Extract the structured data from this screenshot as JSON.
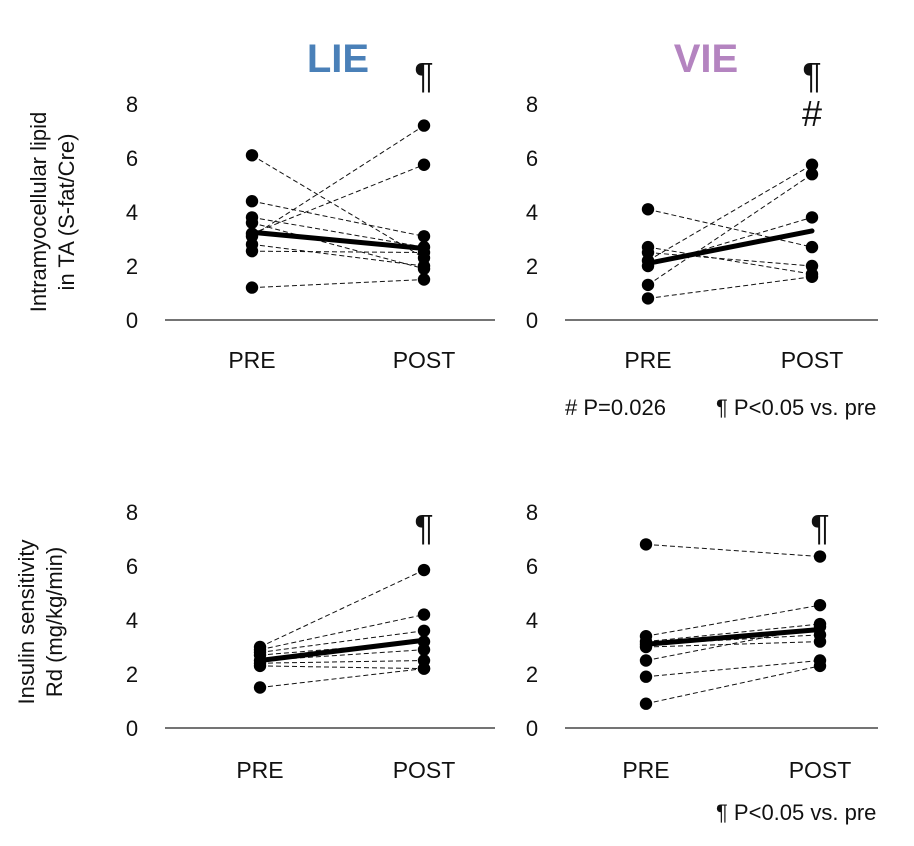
{
  "titles": {
    "lie": "LIE",
    "vie": "VIE"
  },
  "title_colors": {
    "lie": "#4a80b8",
    "vie": "#b484c0"
  },
  "ylabels": {
    "top": [
      "Intramyocellular lipid",
      "in TA (S-fat/Cre)"
    ],
    "bottom": [
      "Insulin sensitivity",
      "Rd (mg/kg/min)"
    ]
  },
  "footnotes": {
    "top_left": "# P=0.026",
    "top_right": "¶ P<0.05 vs. pre",
    "bottom_right": "¶ P<0.05 vs. pre"
  },
  "chart_data": [
    {
      "id": "imcl-lie",
      "type": "line",
      "categories": [
        "PRE",
        "POST"
      ],
      "yticks": [
        0,
        2,
        4,
        6,
        8
      ],
      "ylim": [
        0,
        8
      ],
      "marks": [
        "¶"
      ],
      "individual": [
        [
          6.1,
          2.3
        ],
        [
          4.4,
          3.1
        ],
        [
          3.8,
          2.7
        ],
        [
          3.6,
          1.9
        ],
        [
          3.2,
          5.75
        ],
        [
          3.1,
          7.2
        ],
        [
          2.8,
          2.0
        ],
        [
          2.55,
          2.5
        ],
        [
          1.2,
          1.5
        ]
      ],
      "mean": [
        3.25,
        2.65
      ]
    },
    {
      "id": "imcl-vie",
      "type": "line",
      "categories": [
        "PRE",
        "POST"
      ],
      "yticks": [
        0,
        2,
        4,
        6,
        8
      ],
      "ylim": [
        0,
        8
      ],
      "marks": [
        "¶",
        "#"
      ],
      "individual": [
        [
          4.1,
          2.7
        ],
        [
          2.7,
          1.7
        ],
        [
          2.5,
          2.0
        ],
        [
          2.2,
          5.75
        ],
        [
          2.0,
          3.8
        ],
        [
          1.3,
          5.4
        ],
        [
          0.8,
          1.6
        ]
      ],
      "mean": [
        2.1,
        3.3
      ]
    },
    {
      "id": "rd-lie",
      "type": "line",
      "categories": [
        "PRE",
        "POST"
      ],
      "yticks": [
        0,
        2,
        4,
        6,
        8
      ],
      "ylim": [
        0,
        8
      ],
      "marks": [
        "¶"
      ],
      "individual": [
        [
          3.0,
          5.85
        ],
        [
          2.9,
          4.2
        ],
        [
          2.8,
          3.6
        ],
        [
          2.7,
          3.2
        ],
        [
          2.5,
          2.9
        ],
        [
          2.4,
          2.5
        ],
        [
          2.3,
          2.2
        ],
        [
          1.5,
          2.2
        ]
      ],
      "mean": [
        2.5,
        3.25
      ]
    },
    {
      "id": "rd-vie",
      "type": "line",
      "categories": [
        "PRE",
        "POST"
      ],
      "yticks": [
        0,
        2,
        4,
        6,
        8
      ],
      "ylim": [
        0,
        8
      ],
      "marks": [
        "¶"
      ],
      "individual": [
        [
          6.8,
          6.35
        ],
        [
          3.4,
          4.55
        ],
        [
          3.2,
          3.85
        ],
        [
          3.1,
          3.45
        ],
        [
          3.0,
          3.2
        ],
        [
          2.5,
          3.75
        ],
        [
          1.9,
          2.5
        ],
        [
          0.9,
          2.3
        ]
      ],
      "mean": [
        3.1,
        3.65
      ]
    }
  ]
}
